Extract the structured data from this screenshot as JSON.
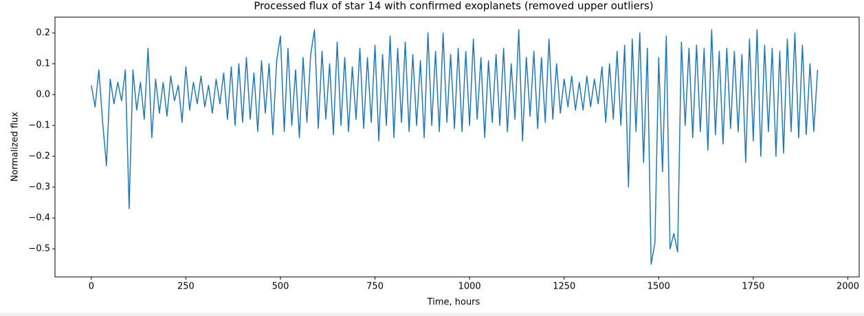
{
  "chart_data": {
    "type": "line",
    "title": "Processed flux of star 14 with confirmed exoplanets (removed upper outliers)",
    "xlabel": "Time, hours",
    "ylabel": "Normalized flux",
    "color": "#1f77b4",
    "grid": false,
    "xlim": [
      -96,
      2030
    ],
    "ylim": [
      -0.591,
      0.251
    ],
    "xticks": [
      0,
      250,
      500,
      750,
      1000,
      1250,
      1500,
      1750,
      2000
    ],
    "yticks": [
      {
        "value": -0.5,
        "label": "−0.5"
      },
      {
        "value": -0.4,
        "label": "−0.4"
      },
      {
        "value": -0.3,
        "label": "−0.3"
      },
      {
        "value": -0.2,
        "label": "−0.2"
      },
      {
        "value": -0.1,
        "label": "−0.1"
      },
      {
        "value": 0,
        "label": "0.0"
      },
      0.1,
      0.2
    ],
    "x": [
      0,
      10,
      20,
      30,
      40,
      50,
      60,
      70,
      80,
      90,
      100,
      110,
      120,
      130,
      140,
      150,
      160,
      170,
      180,
      190,
      200,
      210,
      220,
      230,
      240,
      250,
      260,
      270,
      280,
      290,
      300,
      310,
      320,
      330,
      340,
      350,
      360,
      370,
      380,
      390,
      400,
      410,
      420,
      430,
      440,
      450,
      460,
      470,
      480,
      490,
      500,
      510,
      520,
      530,
      540,
      550,
      560,
      570,
      580,
      590,
      600,
      610,
      620,
      630,
      640,
      650,
      660,
      670,
      680,
      690,
      700,
      710,
      720,
      730,
      740,
      750,
      760,
      770,
      780,
      790,
      800,
      810,
      820,
      830,
      840,
      850,
      860,
      870,
      880,
      890,
      900,
      910,
      920,
      930,
      940,
      950,
      960,
      970,
      980,
      990,
      1000,
      1010,
      1020,
      1030,
      1040,
      1050,
      1060,
      1070,
      1080,
      1090,
      1100,
      1110,
      1120,
      1130,
      1140,
      1150,
      1160,
      1170,
      1180,
      1190,
      1200,
      1210,
      1220,
      1230,
      1240,
      1250,
      1260,
      1270,
      1280,
      1290,
      1300,
      1310,
      1320,
      1330,
      1340,
      1350,
      1360,
      1370,
      1380,
      1390,
      1400,
      1410,
      1420,
      1430,
      1440,
      1450,
      1460,
      1470,
      1480,
      1490,
      1500,
      1510,
      1520,
      1530,
      1540,
      1550,
      1560,
      1570,
      1580,
      1590,
      1600,
      1610,
      1620,
      1630,
      1640,
      1650,
      1660,
      1670,
      1680,
      1690,
      1700,
      1710,
      1720,
      1730,
      1740,
      1750,
      1760,
      1770,
      1780,
      1790,
      1800,
      1810,
      1820,
      1830,
      1840,
      1850,
      1860,
      1870,
      1880,
      1890,
      1900,
      1910,
      1920
    ],
    "values": [
      0.03,
      -0.04,
      0.08,
      -0.09,
      -0.23,
      0.05,
      -0.03,
      0.04,
      -0.02,
      0.08,
      -0.37,
      0.08,
      -0.05,
      0.04,
      -0.08,
      0.15,
      -0.14,
      0.05,
      -0.06,
      0.04,
      -0.07,
      0.06,
      -0.02,
      0.03,
      -0.09,
      0.09,
      -0.05,
      0.04,
      -0.03,
      0.06,
      -0.04,
      0.03,
      -0.06,
      0.05,
      -0.03,
      0.07,
      -0.08,
      0.09,
      -0.1,
      0.1,
      -0.09,
      0.12,
      -0.08,
      0.07,
      -0.12,
      0.11,
      -0.06,
      0.1,
      -0.13,
      0.11,
      0.19,
      -0.12,
      0.15,
      -0.1,
      0.08,
      -0.14,
      0.12,
      -0.09,
      0.13,
      0.21,
      -0.11,
      0.14,
      -0.08,
      0.1,
      -0.13,
      0.17,
      -0.1,
      0.12,
      -0.12,
      0.09,
      -0.08,
      0.15,
      -0.11,
      0.12,
      -0.09,
      0.16,
      -0.15,
      0.13,
      -0.1,
      0.19,
      -0.14,
      0.15,
      -0.09,
      0.17,
      -0.12,
      0.13,
      -0.1,
      0.11,
      -0.14,
      0.2,
      -0.1,
      0.14,
      -0.12,
      0.2,
      -0.09,
      0.13,
      -0.11,
      0.15,
      -0.12,
      0.14,
      -0.1,
      0.18,
      -0.08,
      0.12,
      -0.14,
      0.11,
      -0.09,
      0.13,
      -0.1,
      0.15,
      -0.12,
      0.1,
      -0.08,
      0.21,
      -0.15,
      0.12,
      -0.07,
      0.14,
      -0.11,
      0.12,
      -0.09,
      0.18,
      -0.08,
      0.1,
      -0.06,
      0.05,
      -0.04,
      0.06,
      -0.05,
      0.04,
      -0.05,
      0.06,
      -0.04,
      0.05,
      -0.03,
      0.09,
      -0.09,
      0.1,
      -0.08,
      0.14,
      -0.1,
      0.16,
      -0.3,
      0.18,
      -0.12,
      0.2,
      -0.22,
      0.15,
      -0.55,
      -0.48,
      0.12,
      -0.25,
      0.19,
      -0.5,
      -0.45,
      -0.51,
      0.17,
      -0.1,
      0.15,
      -0.14,
      0.16,
      -0.12,
      0.15,
      -0.18,
      0.21,
      -0.13,
      0.14,
      -0.16,
      0.15,
      -0.11,
      0.14,
      -0.12,
      0.13,
      -0.22,
      0.18,
      -0.15,
      0.21,
      -0.2,
      0.16,
      -0.12,
      0.15,
      -0.2,
      0.14,
      -0.19,
      0.18,
      -0.12,
      0.2,
      -0.14,
      0.16,
      -0.13,
      0.1,
      -0.12,
      0.08
    ]
  }
}
